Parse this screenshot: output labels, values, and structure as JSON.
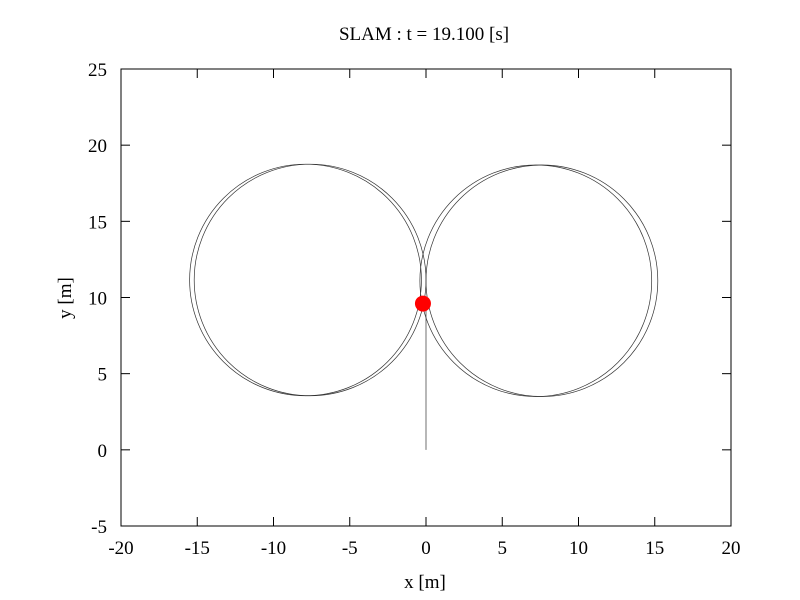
{
  "chart_data": {
    "type": "line",
    "title": "SLAM : t = 19.100 [s]",
    "xlabel": "x [m]",
    "ylabel": "y [m]",
    "xlim": [
      -20,
      20
    ],
    "ylim": [
      -5,
      25
    ],
    "x_ticks": [
      -20,
      -15,
      -10,
      -5,
      0,
      5,
      10,
      15,
      20
    ],
    "y_ticks": [
      -5,
      0,
      5,
      10,
      15,
      20,
      25
    ],
    "x_tick_labels": [
      "-20",
      "-15",
      "-10",
      "-5",
      "0",
      "5",
      "10",
      "15",
      "20"
    ],
    "y_tick_labels": [
      "-5",
      "0",
      "5",
      "10",
      "15",
      "20",
      "25"
    ],
    "grid": false,
    "legend": "none",
    "trajectory": {
      "start": [
        0,
        0
      ],
      "straight_to": [
        0,
        9.6
      ],
      "loops": [
        {
          "center": [
            -7.6,
            11.15
          ],
          "radius": 7.6
        },
        {
          "center": [
            -7.9,
            11.15
          ],
          "radius": 7.6
        },
        {
          "center": [
            7.6,
            11.1
          ],
          "radius": 7.6
        },
        {
          "center": [
            7.2,
            11.1
          ],
          "radius": 7.6
        }
      ]
    },
    "robot_position": {
      "x": -0.2,
      "y": 9.6,
      "color": "#ff0000"
    },
    "path_color": "#333333"
  }
}
